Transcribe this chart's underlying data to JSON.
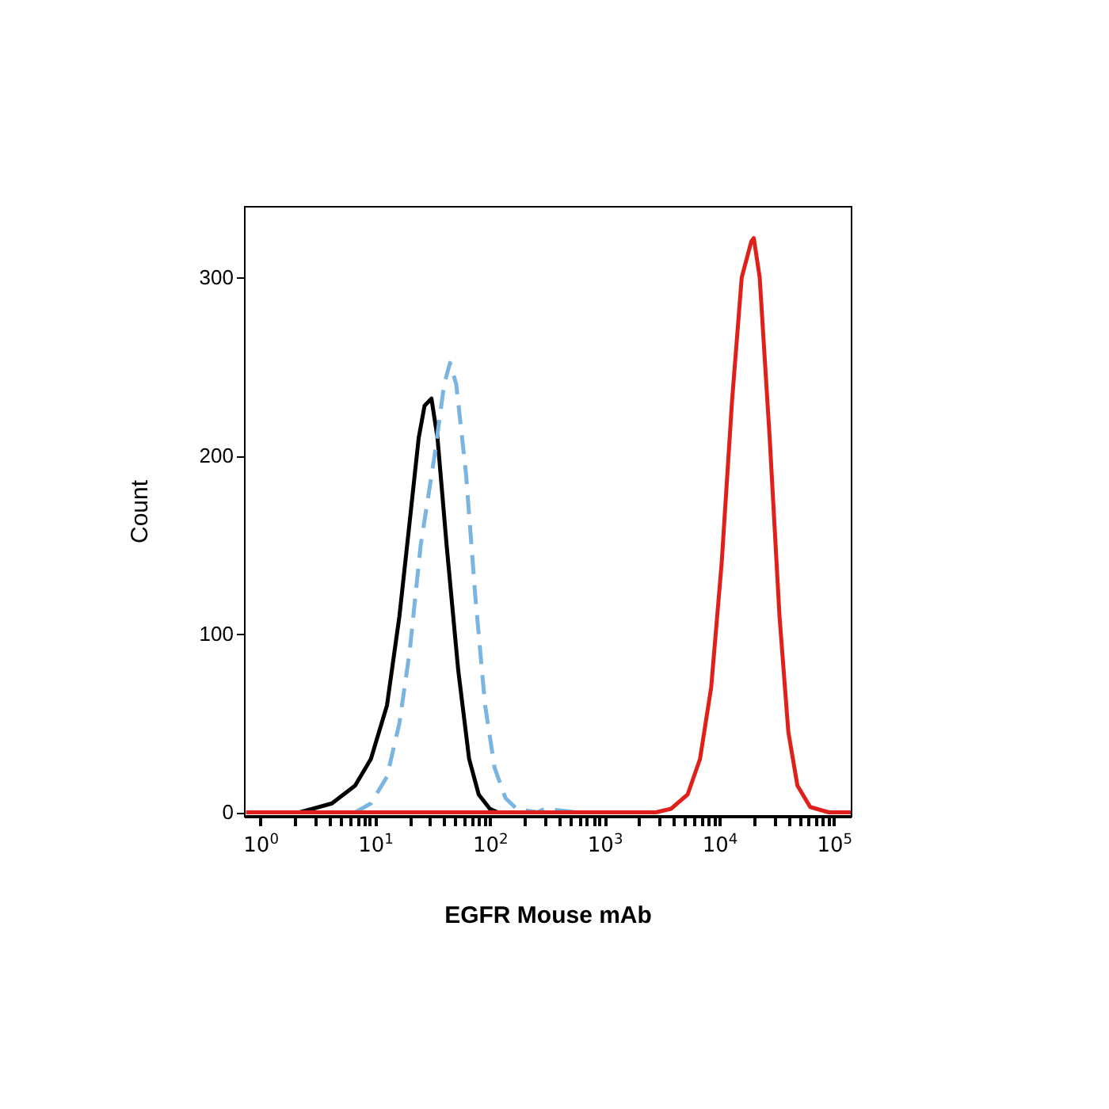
{
  "chart_data": {
    "type": "line",
    "xlabel": "EGFR Mouse mAb",
    "ylabel": "Count",
    "log": "x",
    "grid": false,
    "marker": "none",
    "xlim": [
      0.72,
      140000
    ],
    "ylim": [
      -2,
      340
    ],
    "xticks": [
      {
        "value": 1,
        "label": "10$^{0}$"
      },
      {
        "value": 2,
        "label": null
      },
      {
        "value": 3,
        "label": null
      },
      {
        "value": 4,
        "label": null
      },
      {
        "value": 5,
        "label": null
      },
      {
        "value": 6,
        "label": null
      },
      {
        "value": 7,
        "label": null
      },
      {
        "value": 8,
        "label": null
      },
      {
        "value": 9,
        "label": null
      },
      {
        "value": 10,
        "label": "10$^{1}$"
      },
      {
        "value": 20,
        "label": null
      },
      {
        "value": 30,
        "label": null
      },
      {
        "value": 40,
        "label": null
      },
      {
        "value": 50,
        "label": null
      },
      {
        "value": 60,
        "label": null
      },
      {
        "value": 70,
        "label": null
      },
      {
        "value": 80,
        "label": null
      },
      {
        "value": 90,
        "label": null
      },
      {
        "value": 100,
        "label": "10$^{2}$"
      },
      {
        "value": 200,
        "label": null
      },
      {
        "value": 300,
        "label": null
      },
      {
        "value": 400,
        "label": null
      },
      {
        "value": 500,
        "label": null
      },
      {
        "value": 600,
        "label": null
      },
      {
        "value": 700,
        "label": null
      },
      {
        "value": 800,
        "label": null
      },
      {
        "value": 900,
        "label": null
      },
      {
        "value": 1000,
        "label": "10$^{3}$"
      },
      {
        "value": 2000,
        "label": null
      },
      {
        "value": 3000,
        "label": null
      },
      {
        "value": 4000,
        "label": null
      },
      {
        "value": 5000,
        "label": null
      },
      {
        "value": 6000,
        "label": null
      },
      {
        "value": 7000,
        "label": null
      },
      {
        "value": 8000,
        "label": null
      },
      {
        "value": 9000,
        "label": null
      },
      {
        "value": 10000,
        "label": "10$^{4}$"
      },
      {
        "value": 20000,
        "label": null
      },
      {
        "value": 30000,
        "label": null
      },
      {
        "value": 40000,
        "label": null
      },
      {
        "value": 50000,
        "label": null
      },
      {
        "value": 60000,
        "label": null
      },
      {
        "value": 70000,
        "label": null
      },
      {
        "value": 80000,
        "label": null
      },
      {
        "value": 90000,
        "label": null
      },
      {
        "value": 100000,
        "label": "10$^{5}$"
      }
    ],
    "yticks": [
      0,
      100,
      200,
      300
    ],
    "series": [
      {
        "color": "#000000",
        "line_style": "solid",
        "x": [
          2.2,
          4.2,
          6.7,
          9.2,
          12.7,
          16.3,
          19.8,
          24,
          27,
          31,
          35,
          42,
          53,
          66,
          80,
          100,
          117
        ],
        "values": [
          0,
          5,
          15,
          30,
          60,
          110,
          160,
          210,
          228,
          232,
          210,
          150,
          80,
          30,
          10,
          2,
          0
        ]
      },
      {
        "color": "#7ab4e0",
        "line_style": "dashed",
        "x": [
          6.7,
          9.2,
          12.7,
          16.3,
          20,
          25,
          33,
          40,
          45,
          51,
          62,
          75,
          91,
          110,
          137,
          171,
          260,
          300,
          417,
          570
        ],
        "values": [
          0,
          5,
          20,
          50,
          90,
          150,
          200,
          240,
          252,
          240,
          190,
          120,
          60,
          25,
          8,
          2,
          0,
          2,
          1,
          0
        ]
      },
      {
        "color": "#e0201b",
        "line_style": "solid",
        "x": [
          0.75,
          2800,
          3800,
          5300,
          6800,
          8500,
          10500,
          12900,
          15700,
          19000,
          20000,
          22500,
          27500,
          33500,
          40000,
          48000,
          62000,
          90000,
          140000
        ],
        "values": [
          0,
          0,
          2,
          10,
          30,
          70,
          140,
          230,
          300,
          320,
          322,
          300,
          210,
          110,
          45,
          15,
          3,
          0,
          0
        ]
      }
    ]
  }
}
